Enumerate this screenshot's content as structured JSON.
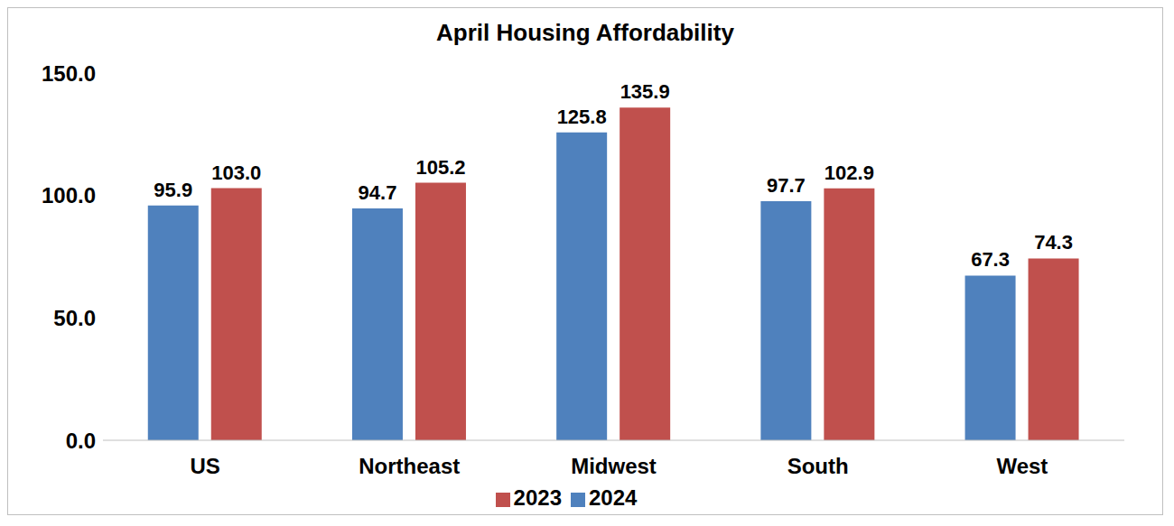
{
  "chart_data": {
    "type": "bar",
    "title": "April Housing Affordability",
    "categories": [
      "US",
      "Northeast",
      "Midwest",
      "South",
      "West"
    ],
    "series": [
      {
        "name": "2024",
        "color": "#4f81bd",
        "values": [
          95.9,
          94.7,
          125.8,
          97.7,
          67.3
        ],
        "value_labels": [
          "95.9",
          "94.7",
          "125.8",
          "97.7",
          "67.3"
        ]
      },
      {
        "name": "2023",
        "color": "#c0504d",
        "values": [
          103.0,
          105.2,
          135.9,
          102.9,
          74.3
        ],
        "value_labels": [
          "103.0",
          "105.2",
          "135.9",
          "102.9",
          "74.3"
        ]
      }
    ],
    "ylim": [
      0,
      150
    ],
    "yticks": [
      {
        "value": 0,
        "label": "0.0"
      },
      {
        "value": 50,
        "label": "50.0"
      },
      {
        "value": 100,
        "label": "100.0"
      },
      {
        "value": 150,
        "label": "150.0"
      }
    ],
    "grid": false,
    "legend": "bottom",
    "data_labels": true
  }
}
